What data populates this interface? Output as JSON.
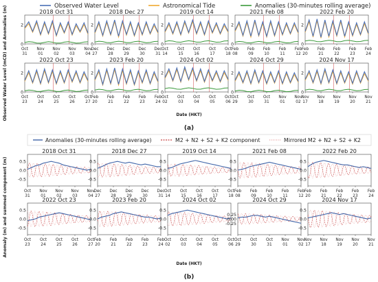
{
  "panel_a_label": "(a)",
  "panel_b_label": "(b)",
  "legend_a": [
    {
      "label": "Observed Water Level",
      "color": "#4a6fb5"
    },
    {
      "label": "Astronomical Tide",
      "color": "#f0a830"
    },
    {
      "label": "Anomalies (30-minutes rolling average)",
      "color": "#3a9a3a"
    }
  ],
  "legend_b": [
    {
      "label": "Anomalies (30-minutes rolling average)",
      "color": "#3f64a8"
    },
    {
      "label": "M2 + N2 + S2 + K2 component",
      "color": "#c84444"
    },
    {
      "label": "Mirrored M2 + N2 + S2 + K2",
      "color": "#e8a0a0"
    }
  ],
  "axis_a": {
    "ylabel": "Observed Water Level (mCD) and Anomalies (m)",
    "xlabel": "Date (HKT)"
  },
  "axis_b": {
    "ylabel": "Anomaly (m) and summed component (m)",
    "xlabel": "Date (HKT)"
  },
  "chart_data": [
    {
      "panel": "a",
      "type": "line",
      "ylim": [
        0,
        3
      ],
      "yticks": [
        "0",
        "2"
      ],
      "series_names": [
        "Observed Water Level",
        "Astronomical Tide",
        "Anomalies (30-minutes rolling average)"
      ],
      "subplots": [
        {
          "title": "2018 Oct 31",
          "xticks": [
            [
              "Oct",
              "31"
            ],
            [
              "Nov",
              "01"
            ],
            [
              "Nov",
              "02"
            ],
            [
              "Nov",
              "03"
            ],
            [
              "Nov",
              "04"
            ]
          ]
        },
        {
          "title": "2018 Dec 27",
          "xticks": [
            [
              "Dec",
              "27"
            ],
            [
              "Dec",
              "28"
            ],
            [
              "Dec",
              "29"
            ],
            [
              "Dec",
              "30"
            ],
            [
              "Dec",
              "31"
            ]
          ]
        },
        {
          "title": "2019 Oct 14",
          "xticks": [
            [
              "Oct",
              "14"
            ],
            [
              "Oct",
              "15"
            ],
            [
              "Oct",
              "16"
            ],
            [
              "Oct",
              "17"
            ],
            [
              "Oct",
              "18"
            ]
          ]
        },
        {
          "title": "2021 Feb 08",
          "xticks": [
            [
              "Feb",
              "08"
            ],
            [
              "Feb",
              "09"
            ],
            [
              "Feb",
              "10"
            ],
            [
              "Feb",
              "11"
            ],
            [
              "Feb",
              "12"
            ]
          ]
        },
        {
          "title": "2022 Feb 20",
          "xticks": [
            [
              "Feb",
              "20"
            ],
            [
              "Feb",
              "21"
            ],
            [
              "Feb",
              "22"
            ],
            [
              "Feb",
              "23"
            ],
            [
              "Feb",
              "24"
            ]
          ]
        },
        {
          "title": "2022 Oct 23",
          "xticks": [
            [
              "Oct",
              "23"
            ],
            [
              "Oct",
              "24"
            ],
            [
              "Oct",
              "25"
            ],
            [
              "Oct",
              "26"
            ],
            [
              "Oct",
              "27"
            ]
          ]
        },
        {
          "title": "2023 Feb 20",
          "xticks": [
            [
              "Feb",
              "20"
            ],
            [
              "Feb",
              "21"
            ],
            [
              "Feb",
              "22"
            ],
            [
              "Feb",
              "23"
            ],
            [
              "Feb",
              "24"
            ]
          ]
        },
        {
          "title": "2024 Oct 02",
          "xticks": [
            [
              "Oct",
              "02"
            ],
            [
              "Oct",
              "03"
            ],
            [
              "Oct",
              "04"
            ],
            [
              "Oct",
              "05"
            ],
            [
              "Oct",
              "06"
            ]
          ]
        },
        {
          "title": "2024 Oct 29",
          "xticks": [
            [
              "Oct",
              "29"
            ],
            [
              "Oct",
              "30"
            ],
            [
              "Oct",
              "31"
            ],
            [
              "Nov",
              "01"
            ],
            [
              "Nov",
              "02"
            ]
          ]
        },
        {
          "title": "2024 Nov 17",
          "xticks": [
            [
              "Nov",
              "17"
            ],
            [
              "Nov",
              "18"
            ],
            [
              "Nov",
              "19"
            ],
            [
              "Nov",
              "20"
            ],
            [
              "Nov",
              "21"
            ]
          ]
        }
      ],
      "observed": [
        [
          1.7,
          2.3,
          1.3,
          2.4,
          1.0,
          2.3,
          1.1,
          2.4,
          0.9,
          2.2,
          1.2,
          2.3,
          1.0,
          2.1,
          1.3,
          2.2,
          1.1
        ],
        [
          1.2,
          2.3,
          0.9,
          2.4,
          1.0,
          2.5,
          0.8,
          2.4,
          1.0,
          2.3,
          0.9,
          2.2,
          1.0,
          2.3,
          1.1,
          2.1,
          1.2
        ],
        [
          1.3,
          2.2,
          1.1,
          2.3,
          1.0,
          2.4,
          1.2,
          2.5,
          1.1,
          2.3,
          1.0,
          2.4,
          1.2,
          2.2,
          1.1,
          2.1,
          1.3
        ],
        [
          1.4,
          2.3,
          0.9,
          2.4,
          0.8,
          2.5,
          0.9,
          2.3,
          0.8,
          2.4,
          0.9,
          2.3,
          1.0,
          2.2,
          1.1,
          2.2,
          1.2
        ],
        [
          1.3,
          2.5,
          0.8,
          2.6,
          0.7,
          2.5,
          0.8,
          2.4,
          0.9,
          2.5,
          0.8,
          2.3,
          0.9,
          2.2,
          1.0,
          2.3,
          1.1
        ],
        [
          1.2,
          2.2,
          1.0,
          2.3,
          0.9,
          2.4,
          1.0,
          2.3,
          0.9,
          2.2,
          1.0,
          2.3,
          1.1,
          2.2,
          1.0,
          2.1,
          1.2
        ],
        [
          1.3,
          2.3,
          0.8,
          2.4,
          0.9,
          2.5,
          0.8,
          2.4,
          0.9,
          2.3,
          0.8,
          2.2,
          1.0,
          2.3,
          0.9,
          2.1,
          1.1
        ],
        [
          1.5,
          2.4,
          1.2,
          2.5,
          1.1,
          2.6,
          1.3,
          2.5,
          1.2,
          2.4,
          1.1,
          2.3,
          1.2,
          2.2,
          1.1,
          2.2,
          1.3
        ],
        [
          1.2,
          2.1,
          1.0,
          2.2,
          0.9,
          2.3,
          1.0,
          2.2,
          0.9,
          2.1,
          1.0,
          2.2,
          0.9,
          2.1,
          1.0,
          2.0,
          1.1
        ],
        [
          1.3,
          2.2,
          1.0,
          2.3,
          0.9,
          2.4,
          1.0,
          2.3,
          0.9,
          2.2,
          1.0,
          2.1,
          0.9,
          2.2,
          1.0,
          2.1,
          1.2
        ]
      ],
      "anomaly_level": [
        0.15,
        0.2,
        0.25,
        0.18,
        0.3,
        0.12,
        0.2,
        0.35,
        0.1,
        0.2
      ]
    },
    {
      "panel": "b",
      "type": "line",
      "ylim": [
        -0.9,
        0.9
      ],
      "yticks": [
        "-0.5",
        "0.0",
        "0.5"
      ],
      "yticks_alt": [
        "-0.25",
        "0.00",
        "0.25"
      ],
      "series_names": [
        "Anomalies (30-minutes rolling average)",
        "M2 + N2 + S2 + K2 component",
        "Mirrored M2 + N2 + S2 + K2"
      ],
      "subplots": [
        {
          "title": "2018 Oct 31",
          "xticks": [
            [
              "Oct",
              "31"
            ],
            [
              "Nov",
              "01"
            ],
            [
              "Nov",
              "02"
            ],
            [
              "Nov",
              "03"
            ],
            [
              "Nov",
              "04"
            ]
          ]
        },
        {
          "title": "2018 Dec 27",
          "xticks": [
            [
              "Dec",
              "27"
            ],
            [
              "Dec",
              "28"
            ],
            [
              "Dec",
              "29"
            ],
            [
              "Dec",
              "30"
            ],
            [
              "Dec",
              "31"
            ]
          ]
        },
        {
          "title": "2019 Oct 14",
          "xticks": [
            [
              "Oct",
              "14"
            ],
            [
              "Oct",
              "15"
            ],
            [
              "Oct",
              "16"
            ],
            [
              "Oct",
              "17"
            ],
            [
              "Oct",
              "18"
            ]
          ]
        },
        {
          "title": "2021 Feb 08",
          "xticks": [
            [
              "Feb",
              "08"
            ],
            [
              "Feb",
              "09"
            ],
            [
              "Feb",
              "10"
            ],
            [
              "Feb",
              "11"
            ],
            [
              "Feb",
              "12"
            ]
          ]
        },
        {
          "title": "2022 Feb 20",
          "xticks": [
            [
              "Feb",
              "20"
            ],
            [
              "Feb",
              "21"
            ],
            [
              "Feb",
              "22"
            ],
            [
              "Feb",
              "23"
            ],
            [
              "Feb",
              "24"
            ]
          ]
        },
        {
          "title": "2022 Oct 23",
          "xticks": [
            [
              "Oct",
              "23"
            ],
            [
              "Oct",
              "24"
            ],
            [
              "Oct",
              "25"
            ],
            [
              "Oct",
              "26"
            ],
            [
              "Oct",
              "27"
            ]
          ]
        },
        {
          "title": "2023 Feb 20",
          "xticks": [
            [
              "Feb",
              "20"
            ],
            [
              "Feb",
              "21"
            ],
            [
              "Feb",
              "22"
            ],
            [
              "Feb",
              "23"
            ],
            [
              "Feb",
              "24"
            ]
          ]
        },
        {
          "title": "2024 Oct 02",
          "xticks": [
            [
              "Oct",
              "02"
            ],
            [
              "Oct",
              "03"
            ],
            [
              "Oct",
              "04"
            ],
            [
              "Oct",
              "05"
            ],
            [
              "Oct",
              "06"
            ]
          ]
        },
        {
          "title": "2024 Oct 29",
          "xticks": [
            [
              "Oct",
              "29"
            ],
            [
              "Oct",
              "30"
            ],
            [
              "Oct",
              "31"
            ],
            [
              "Nov",
              "01"
            ],
            [
              "Nov",
              "02"
            ]
          ]
        },
        {
          "title": "2024 Nov 17",
          "xticks": [
            [
              "Nov",
              "17"
            ],
            [
              "Nov",
              "18"
            ],
            [
              "Nov",
              "19"
            ],
            [
              "Nov",
              "20"
            ],
            [
              "Nov",
              "21"
            ]
          ]
        }
      ],
      "anomaly": [
        [
          0.05,
          0.15,
          0.25,
          0.3,
          0.4,
          0.45,
          0.5,
          0.45,
          0.4,
          0.3,
          0.25,
          0.2,
          0.15,
          0.1,
          0.05,
          0.0,
          0.05
        ],
        [
          0.1,
          0.2,
          0.3,
          0.4,
          0.45,
          0.5,
          0.45,
          0.4,
          0.45,
          0.4,
          0.35,
          0.3,
          0.35,
          0.3,
          0.25,
          0.2,
          0.2
        ],
        [
          0.1,
          0.15,
          0.25,
          0.35,
          0.4,
          0.45,
          0.5,
          0.55,
          0.5,
          0.45,
          0.4,
          0.35,
          0.3,
          0.25,
          0.2,
          0.15,
          0.1
        ],
        [
          0.0,
          0.05,
          0.1,
          0.2,
          0.25,
          0.3,
          0.35,
          0.4,
          0.45,
          0.4,
          0.35,
          0.3,
          0.25,
          0.2,
          0.15,
          0.1,
          0.05
        ],
        [
          0.2,
          0.35,
          0.45,
          0.5,
          0.55,
          0.5,
          0.45,
          0.4,
          0.35,
          0.3,
          0.3,
          0.25,
          0.2,
          0.15,
          0.2,
          0.15,
          0.1
        ],
        [
          -0.1,
          -0.05,
          0.0,
          0.1,
          0.15,
          0.2,
          0.25,
          0.3,
          0.35,
          0.3,
          0.25,
          0.2,
          0.15,
          0.1,
          0.05,
          0.0,
          -0.05
        ],
        [
          0.0,
          0.1,
          0.15,
          0.2,
          0.3,
          0.35,
          0.4,
          0.35,
          0.3,
          0.25,
          0.2,
          0.15,
          0.1,
          0.1,
          0.05,
          0.0,
          0.05
        ],
        [
          0.2,
          0.3,
          0.35,
          0.4,
          0.45,
          0.5,
          0.45,
          0.4,
          0.35,
          0.3,
          0.25,
          0.2,
          0.15,
          0.1,
          0.05,
          0.0,
          0.05
        ],
        [
          0.05,
          0.1,
          0.1,
          0.15,
          0.2,
          0.2,
          0.15,
          0.1,
          0.15,
          0.1,
          0.05,
          0.0,
          -0.05,
          -0.1,
          -0.15,
          -0.2,
          -0.25
        ],
        [
          0.05,
          0.1,
          0.15,
          0.2,
          0.25,
          0.3,
          0.35,
          0.3,
          0.25,
          0.3,
          0.25,
          0.2,
          0.15,
          0.1,
          0.05,
          0.0,
          0.05
        ]
      ],
      "component_amplitude": [
        0.4,
        0.4,
        0.35,
        0.45,
        0.45,
        0.45,
        0.45,
        0.4,
        0.3,
        0.5
      ]
    }
  ]
}
